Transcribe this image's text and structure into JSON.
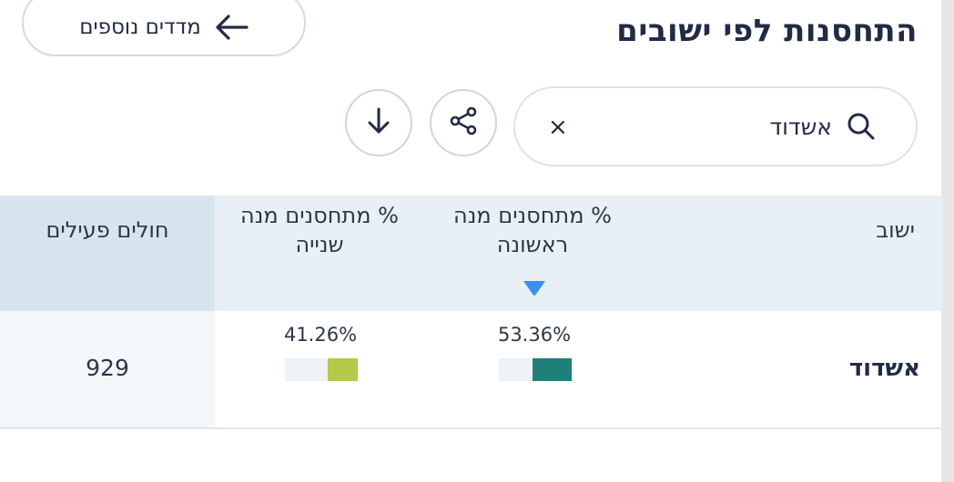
{
  "header": {
    "title": "התחסנות לפי ישובים",
    "more_button_label": "מדדים נוספים"
  },
  "search": {
    "value": "אשדוד",
    "clear_glyph": "×"
  },
  "toolbar": {
    "share_icon": "share-icon",
    "download_icon": "download-icon"
  },
  "table": {
    "columns": {
      "town": "ישוב",
      "first_dose": "% מתחסנים מנה ראשונה",
      "second_dose": "% מתחסנים מנה שנייה",
      "active_sick": "חולים פעילים"
    },
    "sorted_column": "first_dose",
    "rows": [
      {
        "town": "אשדוד",
        "first_dose_pct": "53.36%",
        "first_dose_value": 0.5336,
        "second_dose_pct": "41.26%",
        "second_dose_value": 0.4126,
        "active_sick": "929"
      }
    ]
  },
  "colors": {
    "first_dose_bar": "#1f7f79",
    "second_dose_bar": "#b5c94a",
    "sort_arrow": "#3b8ff0",
    "header_bg": "#e8f0f5"
  }
}
